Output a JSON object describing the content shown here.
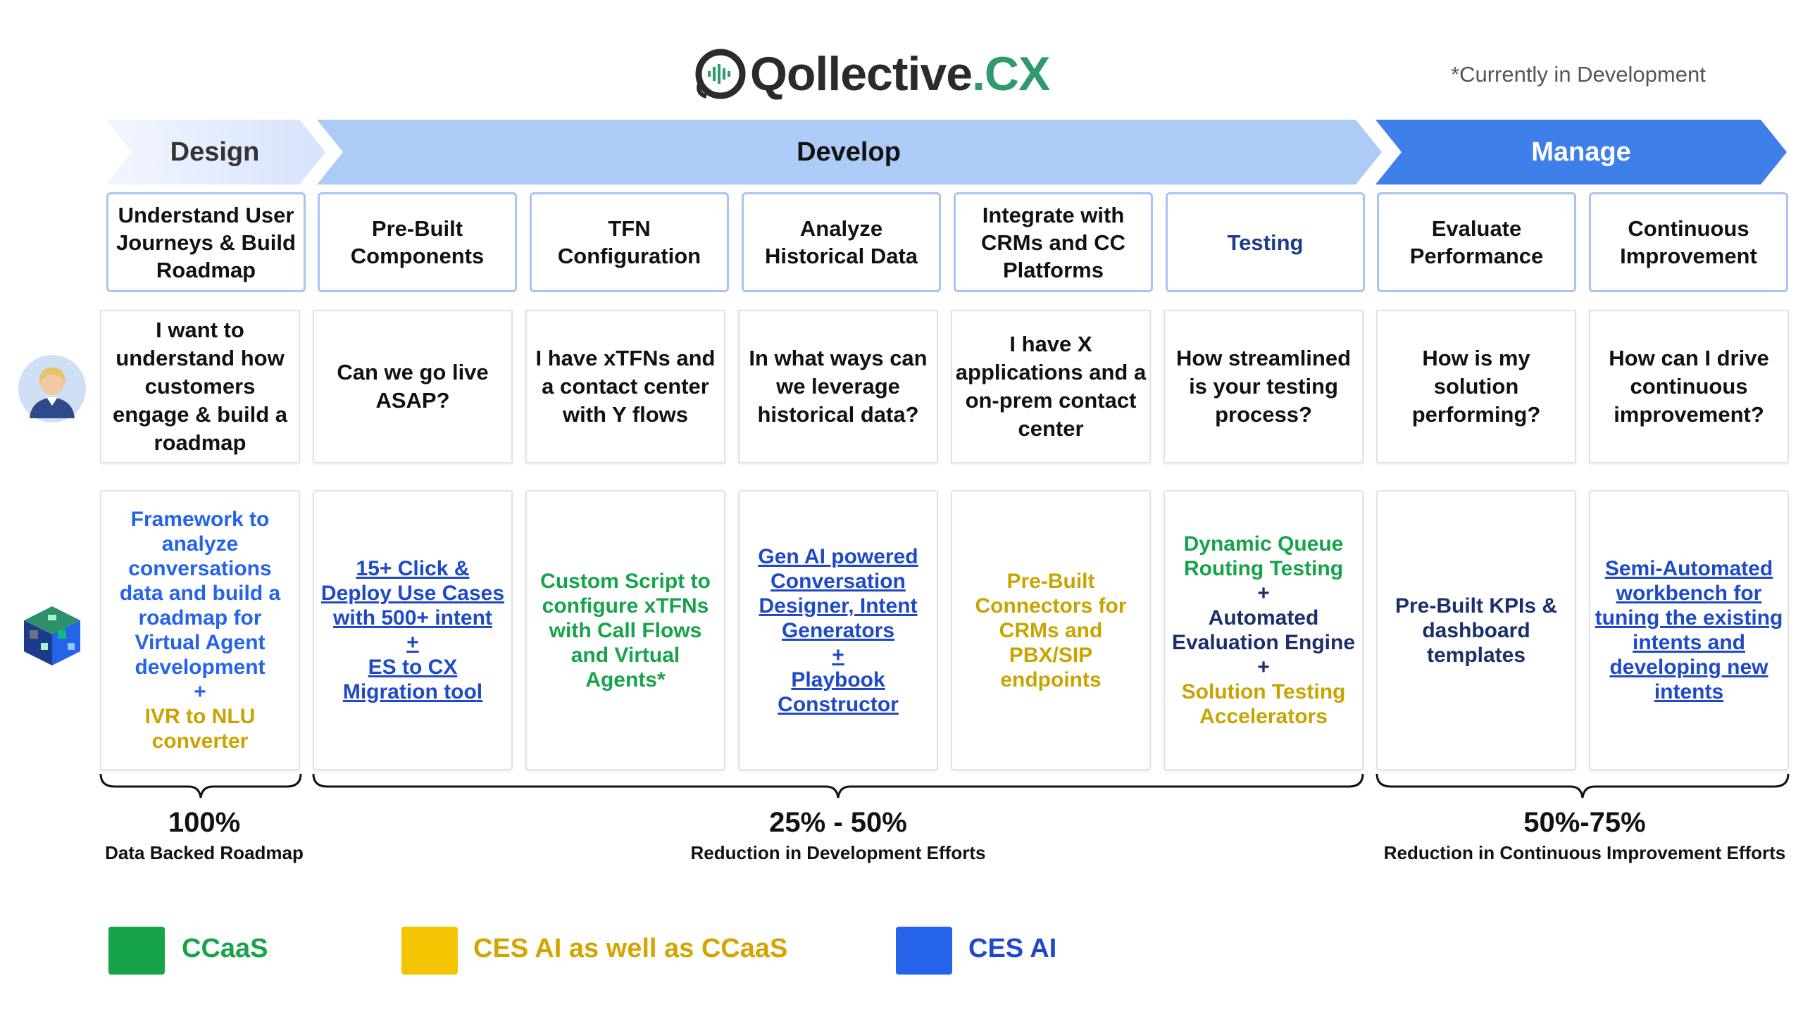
{
  "header": {
    "logo_text_main": "Qollective",
    "logo_text_tld": ".CX",
    "dev_note": "*Currently in Development"
  },
  "phases": {
    "design": "Design",
    "develop": "Develop",
    "manage": "Manage"
  },
  "steps": [
    "Understand User Journeys & Build Roadmap",
    "Pre-Built Components",
    "TFN Configuration",
    "Analyze Historical Data",
    "Integrate with CRMs and CC Platforms",
    "Testing",
    "Evaluate Performance",
    "Continuous Improvement"
  ],
  "questions": [
    "I want to understand how customers engage & build a roadmap",
    "Can we go live ASAP?",
    "I have xTFNs and a contact center with Y flows",
    "In what ways can we leverage historical data?",
    "I have X applications and a on-prem contact center",
    "How streamlined is your testing process?",
    "How is my solution performing?",
    "How can I drive continuous improvement?"
  ],
  "solutions": {
    "s1": {
      "a": "Framework to analyze conversations data and build a roadmap for Virtual Agent development",
      "plus": "+",
      "b": "IVR to NLU converter"
    },
    "s2": {
      "a": "15+ Click & Deploy Use Cases with 500+ intent",
      "plus": "+",
      "b": "ES to CX Migration tool"
    },
    "s3": {
      "a": "Custom Script to configure xTFNs with Call Flows and Virtual Agents*"
    },
    "s4": {
      "a": "Gen AI powered Conversation Designer, Intent Generators",
      "plus": "+",
      "b": "Playbook Constructor"
    },
    "s5": {
      "a": "Pre-Built Connectors for CRMs and PBX/SIP endpoints"
    },
    "s6": {
      "a": "Dynamic Queue Routing Testing",
      "plus1": "+",
      "b": "Automated Evaluation Engine",
      "plus2": "+",
      "c": "Solution Testing Accelerators"
    },
    "s7": {
      "a": "Pre-Built KPIs & dashboard templates"
    },
    "s8": {
      "a": "Semi-Automated workbench for tuning the existing intents and developing new intents"
    }
  },
  "stats": [
    {
      "value": "100%",
      "desc": "Data Backed Roadmap"
    },
    {
      "value": "25% - 50%",
      "desc": "Reduction in Development Efforts"
    },
    {
      "value": "50%-75%",
      "desc": "Reduction in Continuous Improvement Efforts"
    }
  ],
  "legend": [
    {
      "label": "CCaaS",
      "color": "#16a34a"
    },
    {
      "label": "CES AI as well as CCaaS",
      "color": "#f5c400"
    },
    {
      "label": "CES AI",
      "color": "#2563eb"
    }
  ],
  "icons": {
    "user": "user-avatar-icon",
    "cube": "cube-icon"
  }
}
